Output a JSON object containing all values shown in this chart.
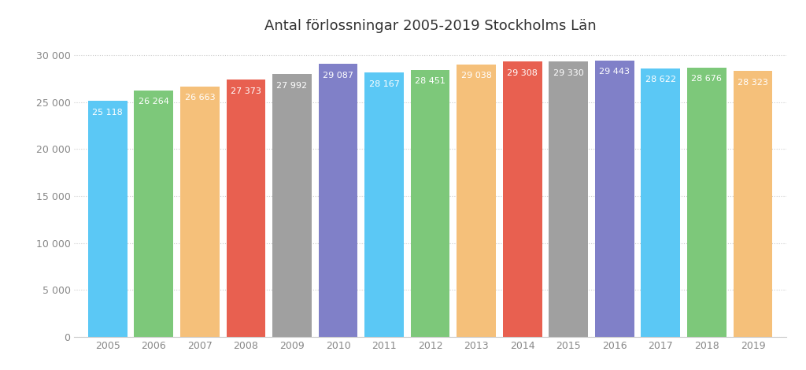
{
  "title": "Antal förlossningar 2005-2019 Stockholms Län",
  "years": [
    2005,
    2006,
    2007,
    2008,
    2009,
    2010,
    2011,
    2012,
    2013,
    2014,
    2015,
    2016,
    2017,
    2018,
    2019
  ],
  "values": [
    25118,
    26264,
    26663,
    27373,
    27992,
    29087,
    28167,
    28451,
    29038,
    29308,
    29330,
    29443,
    28622,
    28676,
    28323
  ],
  "bar_colors": [
    "#5BC8F5",
    "#7DC87A",
    "#F5C07A",
    "#E86050",
    "#A0A0A0",
    "#8080C8",
    "#5BC8F5",
    "#7DC87A",
    "#F5C07A",
    "#E86050",
    "#A0A0A0",
    "#8080C8",
    "#5BC8F5",
    "#7DC87A",
    "#F5C07A"
  ],
  "label_color": "#FFFFFF",
  "background_color": "#FFFFFF",
  "ylim": [
    0,
    31500
  ],
  "yticks": [
    0,
    5000,
    10000,
    15000,
    20000,
    25000,
    30000
  ],
  "ytick_labels": [
    "0",
    "5 000",
    "10 000",
    "15 000",
    "20 000",
    "25 000",
    "30 000"
  ],
  "value_labels": [
    "25 118",
    "26 264",
    "26 663",
    "27 373",
    "27 992",
    "29 087",
    "28 167",
    "28 451",
    "29 038",
    "29 308",
    "29 330",
    "29 443",
    "28 622",
    "28 676",
    "28 323"
  ],
  "title_fontsize": 13,
  "label_fontsize": 8,
  "tick_fontsize": 9,
  "grid_color": "#CCCCCC"
}
